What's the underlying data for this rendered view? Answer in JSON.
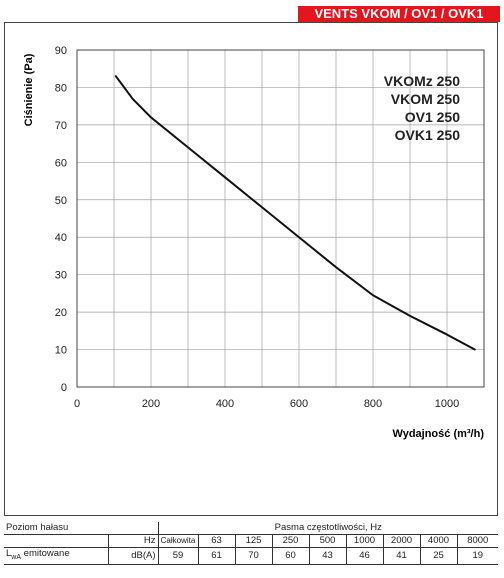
{
  "header": {
    "badge": "VENTS VKOM / OV1 / OVK1"
  },
  "chart_data": {
    "type": "line",
    "title": "",
    "xlabel": "Wydajność (m³/h)",
    "ylabel": "Ciśnienie (Pa)",
    "xlim": [
      0,
      1100
    ],
    "ylim": [
      0,
      90
    ],
    "x_ticks": [
      "0",
      "200",
      "400",
      "600",
      "800",
      "1000"
    ],
    "y_ticks": [
      "0",
      "10",
      "20",
      "30",
      "40",
      "50",
      "60",
      "70",
      "80",
      "90"
    ],
    "grid": true,
    "legend_placement": "top-right",
    "legend": [
      "VKOMz 250",
      "VKOM 250",
      "OV1 250",
      "OVK1 250"
    ],
    "series": [
      {
        "x": [
          105,
          150,
          200,
          300,
          400,
          500,
          600,
          700,
          800,
          900,
          1000,
          1075
        ],
        "y": [
          83,
          77,
          72,
          64,
          56,
          48,
          40,
          32,
          24.5,
          19,
          14,
          10
        ]
      }
    ]
  },
  "noise_table": {
    "title": "Poziom hałasu",
    "bands_header": "Pasma częstotliwości, Hz",
    "unit_header": "Hz",
    "total_header": "Całkowita",
    "frequencies": [
      "63",
      "125",
      "250",
      "500",
      "1000",
      "2000",
      "4000",
      "8000"
    ],
    "row_label_main": "L",
    "row_label_sub": "wA",
    "row_label_rest": " emitowane",
    "row_unit": "dB(A)",
    "total_value": "59",
    "values": [
      "61",
      "70",
      "60",
      "43",
      "46",
      "41",
      "25",
      "19"
    ]
  },
  "colors": {
    "badge": "#e3151f",
    "grid": "#a0a0a0",
    "line": "#111111"
  }
}
